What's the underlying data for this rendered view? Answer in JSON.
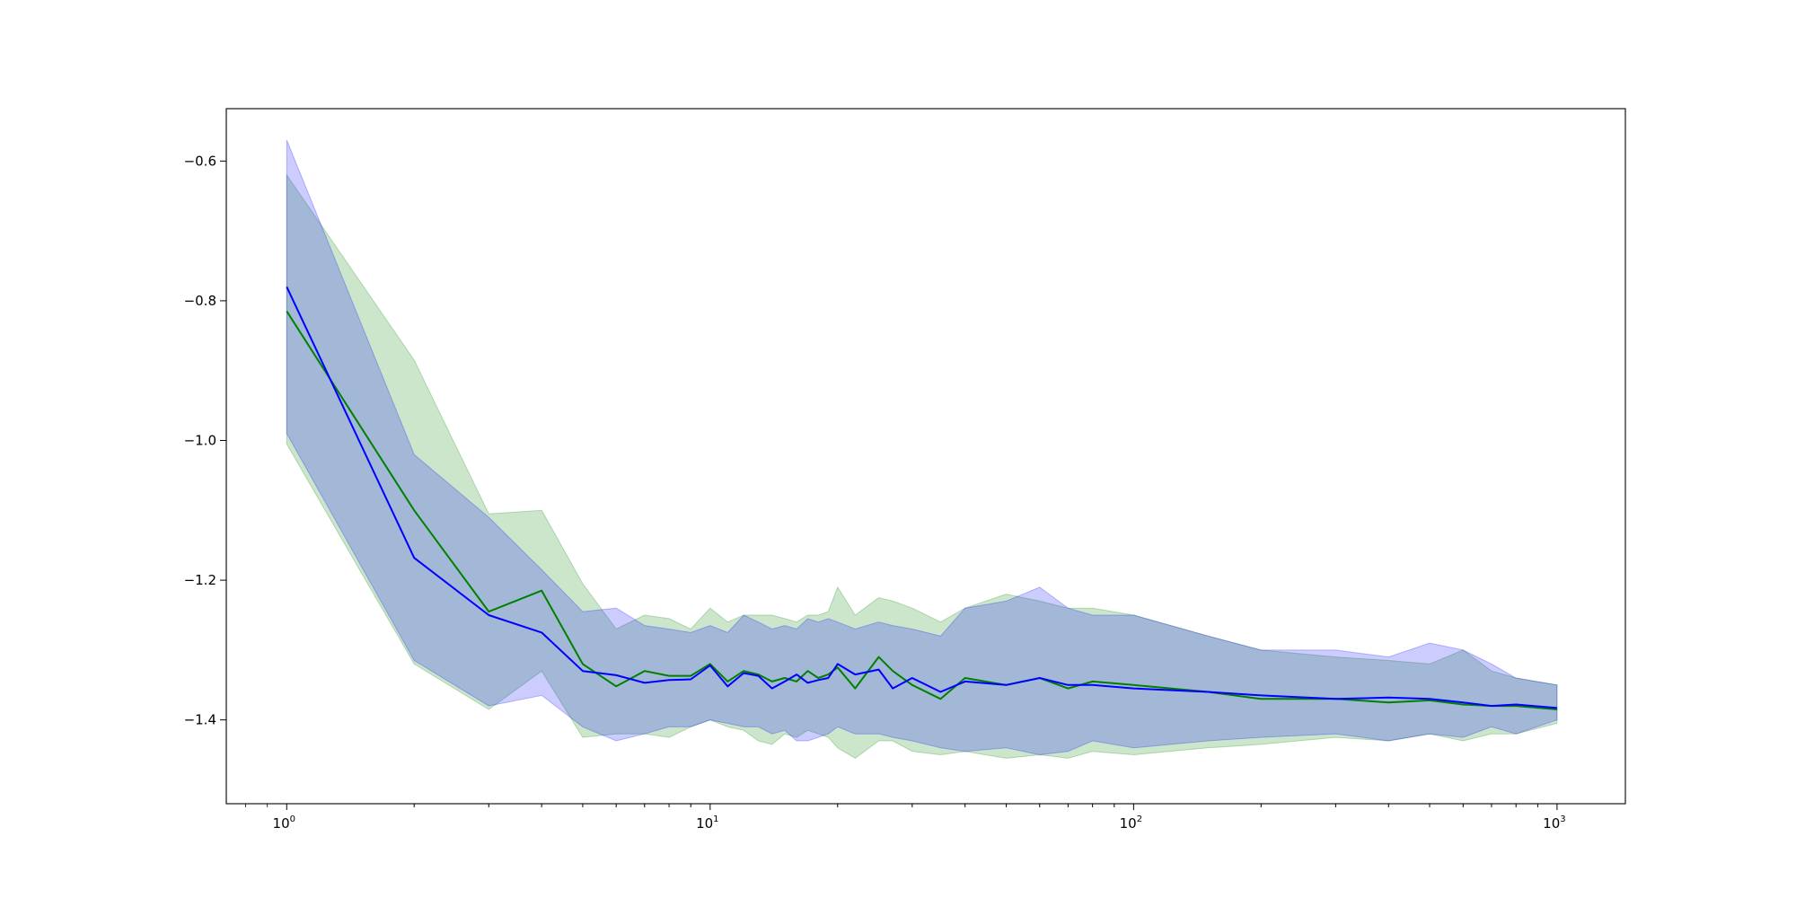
{
  "chart_data": {
    "type": "line",
    "title": "",
    "xlabel": "",
    "ylabel": "",
    "xscale": "log",
    "xlim": [
      0.72,
      1450
    ],
    "ylim": [
      -1.52,
      -0.525
    ],
    "x_ticks": [
      {
        "value": 1,
        "base": "10",
        "exp": "0"
      },
      {
        "value": 10,
        "base": "10",
        "exp": "1"
      },
      {
        "value": 100,
        "base": "10",
        "exp": "2"
      },
      {
        "value": 1000,
        "base": "10",
        "exp": "3"
      }
    ],
    "y_ticks": [
      {
        "value": -0.6,
        "label": "−0.6"
      },
      {
        "value": -0.8,
        "label": "−0.8"
      },
      {
        "value": -1.0,
        "label": "−1.0"
      },
      {
        "value": -1.2,
        "label": "−1.2"
      },
      {
        "value": -1.4,
        "label": "−1.4"
      }
    ],
    "grid": false,
    "legend": "none",
    "series": [
      {
        "color": "#008000",
        "band_color": "#008000",
        "band_opacity": 0.2,
        "x": [
          1,
          2,
          3,
          4,
          5,
          6,
          7,
          8,
          9,
          10,
          11,
          12,
          13,
          14,
          15,
          16,
          17,
          18,
          19,
          20,
          22,
          25,
          27,
          30,
          35,
          40,
          50,
          60,
          70,
          80,
          100,
          150,
          200,
          300,
          400,
          500,
          600,
          700,
          800,
          1000
        ],
        "mean": [
          -0.815,
          -1.1,
          -1.245,
          -1.215,
          -1.32,
          -1.352,
          -1.33,
          -1.337,
          -1.337,
          -1.32,
          -1.345,
          -1.33,
          -1.335,
          -1.345,
          -1.34,
          -1.345,
          -1.33,
          -1.34,
          -1.335,
          -1.325,
          -1.355,
          -1.31,
          -1.33,
          -1.35,
          -1.37,
          -1.34,
          -1.35,
          -1.34,
          -1.355,
          -1.345,
          -1.35,
          -1.36,
          -1.37,
          -1.37,
          -1.375,
          -1.372,
          -1.378,
          -1.38,
          -1.38,
          -1.385
        ],
        "upper": [
          -0.62,
          -0.885,
          -1.105,
          -1.1,
          -1.205,
          -1.27,
          -1.25,
          -1.255,
          -1.27,
          -1.24,
          -1.26,
          -1.25,
          -1.25,
          -1.25,
          -1.255,
          -1.26,
          -1.25,
          -1.25,
          -1.245,
          -1.21,
          -1.25,
          -1.225,
          -1.23,
          -1.24,
          -1.26,
          -1.24,
          -1.22,
          -1.23,
          -1.24,
          -1.24,
          -1.25,
          -1.28,
          -1.3,
          -1.31,
          -1.315,
          -1.32,
          -1.3,
          -1.33,
          -1.34,
          -1.35
        ],
        "lower": [
          -1.005,
          -1.32,
          -1.385,
          -1.33,
          -1.425,
          -1.42,
          -1.42,
          -1.425,
          -1.41,
          -1.4,
          -1.41,
          -1.415,
          -1.43,
          -1.435,
          -1.42,
          -1.425,
          -1.415,
          -1.42,
          -1.425,
          -1.44,
          -1.455,
          -1.43,
          -1.43,
          -1.445,
          -1.45,
          -1.445,
          -1.455,
          -1.45,
          -1.455,
          -1.445,
          -1.45,
          -1.44,
          -1.435,
          -1.425,
          -1.43,
          -1.42,
          -1.43,
          -1.42,
          -1.42,
          -1.405
        ]
      },
      {
        "color": "#0000ff",
        "band_color": "#0000ff",
        "band_opacity": 0.2,
        "x": [
          1,
          2,
          3,
          4,
          5,
          6,
          7,
          8,
          9,
          10,
          11,
          12,
          13,
          14,
          15,
          16,
          17,
          18,
          19,
          20,
          22,
          25,
          27,
          30,
          35,
          40,
          50,
          60,
          70,
          80,
          100,
          150,
          200,
          300,
          400,
          500,
          600,
          700,
          800,
          1000
        ],
        "mean": [
          -0.78,
          -1.168,
          -1.25,
          -1.275,
          -1.33,
          -1.336,
          -1.347,
          -1.343,
          -1.342,
          -1.322,
          -1.352,
          -1.333,
          -1.337,
          -1.355,
          -1.345,
          -1.335,
          -1.347,
          -1.343,
          -1.34,
          -1.32,
          -1.335,
          -1.328,
          -1.355,
          -1.34,
          -1.36,
          -1.345,
          -1.35,
          -1.34,
          -1.35,
          -1.35,
          -1.355,
          -1.36,
          -1.365,
          -1.37,
          -1.368,
          -1.37,
          -1.375,
          -1.38,
          -1.378,
          -1.383
        ],
        "upper": [
          -0.57,
          -1.02,
          -1.11,
          -1.185,
          -1.245,
          -1.24,
          -1.265,
          -1.27,
          -1.275,
          -1.265,
          -1.275,
          -1.25,
          -1.26,
          -1.27,
          -1.265,
          -1.27,
          -1.255,
          -1.26,
          -1.255,
          -1.26,
          -1.27,
          -1.26,
          -1.265,
          -1.27,
          -1.28,
          -1.24,
          -1.23,
          -1.21,
          -1.24,
          -1.25,
          -1.25,
          -1.28,
          -1.3,
          -1.3,
          -1.31,
          -1.29,
          -1.3,
          -1.32,
          -1.34,
          -1.35
        ],
        "lower": [
          -0.99,
          -1.315,
          -1.38,
          -1.365,
          -1.41,
          -1.43,
          -1.42,
          -1.41,
          -1.41,
          -1.4,
          -1.405,
          -1.41,
          -1.41,
          -1.42,
          -1.415,
          -1.43,
          -1.43,
          -1.425,
          -1.42,
          -1.41,
          -1.42,
          -1.42,
          -1.425,
          -1.43,
          -1.44,
          -1.445,
          -1.44,
          -1.45,
          -1.445,
          -1.43,
          -1.44,
          -1.43,
          -1.425,
          -1.42,
          -1.43,
          -1.42,
          -1.425,
          -1.41,
          -1.42,
          -1.4
        ]
      }
    ]
  }
}
